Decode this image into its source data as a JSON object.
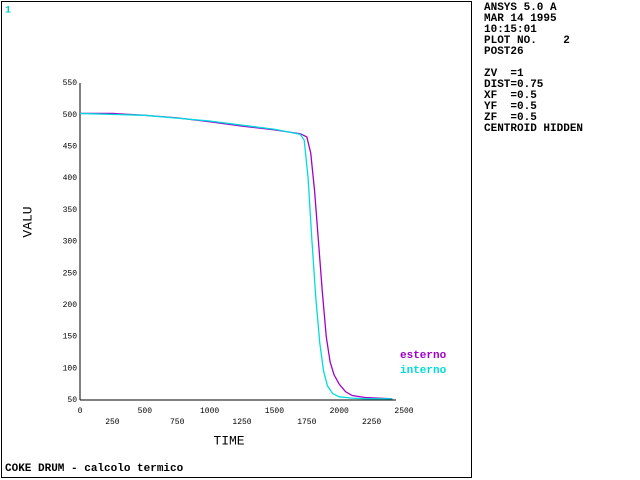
{
  "window_number": "1",
  "info": [
    "ANSYS 5.0 A",
    "MAR 14 1995",
    "10:15:01",
    "PLOT NO.    2",
    "POST26",
    "ZV  =1",
    "DIST=0.75",
    "XF  =0.5",
    "YF  =0.5",
    "ZF  =0.5",
    "CENTROID HIDDEN"
  ],
  "chart_data": {
    "type": "line",
    "title": "COKE DRUM - calcolo termico",
    "x_label": "TIME",
    "y_label": "VALU",
    "xlim": [
      0,
      2500
    ],
    "xticks": [
      0,
      250,
      500,
      750,
      1000,
      1250,
      1500,
      1750,
      2000,
      2250,
      2500
    ],
    "ylim": [
      50,
      550
    ],
    "yticks": [
      50,
      100,
      150,
      200,
      250,
      300,
      350,
      400,
      450,
      500,
      550
    ],
    "series": [
      {
        "name": "esterno",
        "color": "#a000c8",
        "x": [
          0,
          250,
          500,
          750,
          1000,
          1250,
          1500,
          1700,
          1750,
          1780,
          1810,
          1840,
          1870,
          1900,
          1930,
          1960,
          2000,
          2050,
          2100,
          2200,
          2300,
          2410
        ],
        "values": [
          502,
          502,
          499,
          495,
          489,
          482,
          476,
          470,
          465,
          440,
          380,
          300,
          220,
          150,
          110,
          90,
          75,
          63,
          57,
          54,
          53,
          52
        ]
      },
      {
        "name": "interno",
        "color": "#00dcdc",
        "x": [
          0,
          500,
          1000,
          1500,
          1700,
          1730,
          1760,
          1790,
          1820,
          1850,
          1880,
          1910,
          1950,
          2000,
          2100,
          2200,
          2410
        ],
        "values": [
          502,
          499,
          490,
          477,
          469,
          460,
          400,
          300,
          210,
          140,
          95,
          72,
          60,
          55,
          53,
          52,
          52
        ]
      }
    ]
  }
}
